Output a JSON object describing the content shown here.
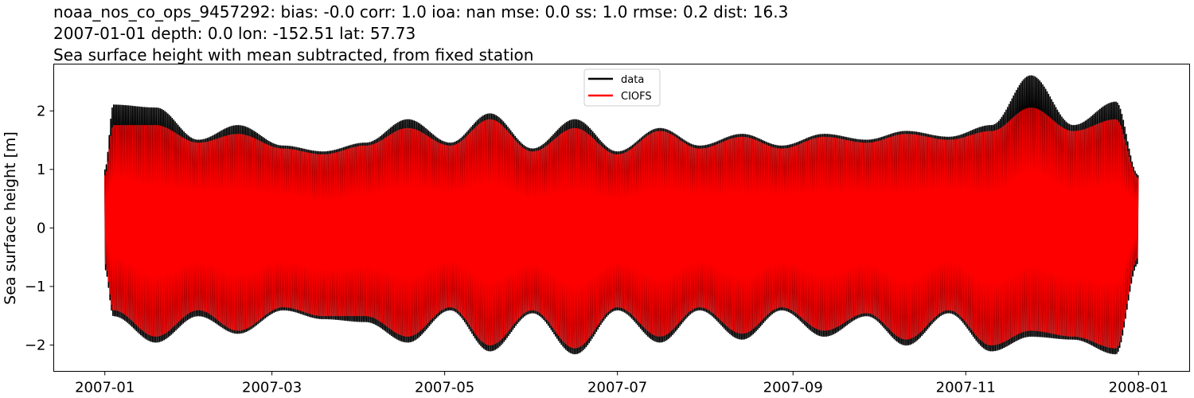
{
  "figure": {
    "title_lines": [
      "noaa_nos_co_ops_9457292: bias: -0.0  corr: 1.0  ioa: nan  mse: 0.0  ss: 1.0  rmse: 0.2  dist: 16.3",
      "2007-01-01 depth: 0.0 lon: -152.51 lat: 57.73",
      "Sea surface height with mean subtracted, from fixed station"
    ]
  },
  "chart_data": {
    "type": "line",
    "title": "noaa_nos_co_ops_9457292: bias: -0.0  corr: 1.0  ioa: nan  mse: 0.0  ss: 1.0  rmse: 0.2  dist: 16.3",
    "ylabel": "Sea surface height [m]",
    "xlabel": "",
    "xlim": [
      "2007-01-01",
      "2008-01-01"
    ],
    "ylim": [
      -2.45,
      2.8
    ],
    "x_ticks": [
      "2007-01",
      "2007-03",
      "2007-05",
      "2007-07",
      "2007-09",
      "2007-11",
      "2008-01"
    ],
    "y_ticks": [
      -2,
      -1,
      0,
      1,
      2
    ],
    "legend": {
      "position": "top-center",
      "entries": [
        "data",
        "CIOFS"
      ]
    },
    "grid": false,
    "x_unit_note": "time axis, semi-diurnal tidal signal with spring-neap modulation",
    "series": [
      {
        "name": "data",
        "color": "#000000",
        "envelope_dates": [
          "2007-01-01",
          "2007-01-04",
          "2007-01-19",
          "2007-02-03",
          "2007-02-17",
          "2007-03-05",
          "2007-03-19",
          "2007-04-03",
          "2007-04-18",
          "2007-05-03",
          "2007-05-17",
          "2007-06-01",
          "2007-06-16",
          "2007-07-01",
          "2007-07-16",
          "2007-07-30",
          "2007-08-14",
          "2007-08-28",
          "2007-09-12",
          "2007-09-27",
          "2007-10-11",
          "2007-10-26",
          "2007-11-10",
          "2007-11-24",
          "2007-12-09",
          "2007-12-24",
          "2008-01-01"
        ],
        "envelope_max": [
          1.0,
          2.1,
          2.05,
          1.5,
          1.75,
          1.4,
          1.3,
          1.45,
          1.85,
          1.45,
          1.95,
          1.35,
          1.85,
          1.3,
          1.7,
          1.4,
          1.6,
          1.4,
          1.6,
          1.5,
          1.65,
          1.55,
          1.75,
          2.6,
          1.75,
          2.15,
          0.9
        ],
        "envelope_min": [
          -0.7,
          -1.5,
          -1.95,
          -1.5,
          -1.8,
          -1.4,
          -1.55,
          -1.6,
          -1.95,
          -1.4,
          -2.1,
          -1.45,
          -2.15,
          -1.4,
          -1.95,
          -1.4,
          -1.9,
          -1.4,
          -1.85,
          -1.5,
          -2.0,
          -1.45,
          -2.1,
          -1.85,
          -1.9,
          -2.15,
          -0.6
        ]
      },
      {
        "name": "CIOFS",
        "color": "#ff0000",
        "envelope_dates": [
          "2007-01-01",
          "2007-01-04",
          "2007-01-19",
          "2007-02-03",
          "2007-02-17",
          "2007-03-05",
          "2007-03-19",
          "2007-04-03",
          "2007-04-18",
          "2007-05-03",
          "2007-05-17",
          "2007-06-01",
          "2007-06-16",
          "2007-07-01",
          "2007-07-16",
          "2007-07-30",
          "2007-08-14",
          "2007-08-28",
          "2007-09-12",
          "2007-09-27",
          "2007-10-11",
          "2007-10-26",
          "2007-11-10",
          "2007-11-24",
          "2007-12-09",
          "2007-12-24",
          "2008-01-01"
        ],
        "envelope_max": [
          0.9,
          1.75,
          1.75,
          1.45,
          1.6,
          1.35,
          1.25,
          1.4,
          1.7,
          1.4,
          1.85,
          1.3,
          1.7,
          1.25,
          1.65,
          1.35,
          1.55,
          1.35,
          1.55,
          1.45,
          1.6,
          1.5,
          1.65,
          2.05,
          1.65,
          1.85,
          0.85
        ],
        "envelope_min": [
          -0.6,
          -1.4,
          -1.85,
          -1.4,
          -1.75,
          -1.35,
          -1.5,
          -1.5,
          -1.85,
          -1.35,
          -2.0,
          -1.4,
          -2.05,
          -1.35,
          -1.85,
          -1.35,
          -1.8,
          -1.35,
          -1.75,
          -1.45,
          -1.9,
          -1.4,
          -2.0,
          -1.75,
          -1.85,
          -2.05,
          -0.5
        ]
      }
    ]
  }
}
